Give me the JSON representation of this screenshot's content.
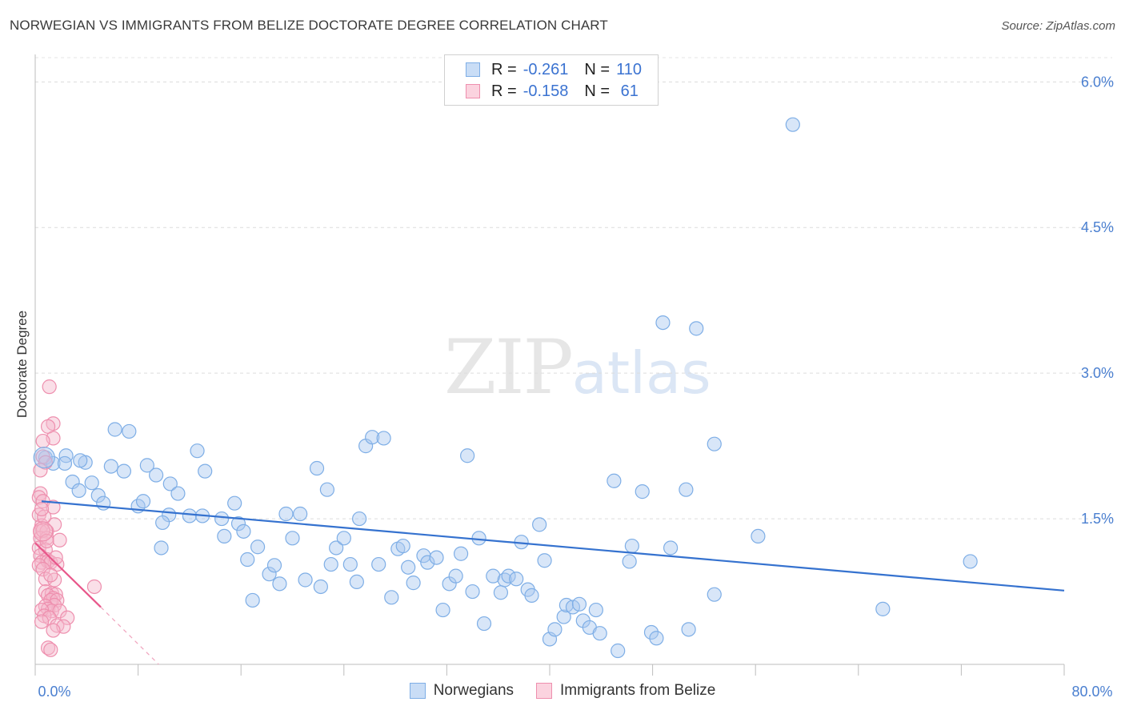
{
  "title": "NORWEGIAN VS IMMIGRANTS FROM BELIZE DOCTORATE DEGREE CORRELATION CHART",
  "source": "Source: ZipAtlas.com",
  "watermark": {
    "zip": "ZIP",
    "atlas": "atlas"
  },
  "legend": {
    "rows": [
      {
        "r_label": "R =",
        "r_value": "-0.261",
        "n_label": "N =",
        "n_value": "110",
        "color": "#a9c8ef"
      },
      {
        "r_label": "R =",
        "r_value": "-0.158",
        "n_label": "N =",
        "n_value": " 61",
        "color": "#f5b8cb"
      }
    ]
  },
  "bottom_legend": [
    {
      "label": "Norwegians",
      "color": "#a9c8ef"
    },
    {
      "label": "Immigrants from Belize",
      "color": "#f5b8cb"
    }
  ],
  "chart_data": {
    "type": "scatter",
    "title": "NORWEGIAN VS IMMIGRANTS FROM BELIZE DOCTORATE DEGREE CORRELATION CHART",
    "xlabel": "",
    "ylabel": "Doctorate Degree",
    "xlim": [
      0,
      80
    ],
    "ylim": [
      0,
      6.25
    ],
    "x_tick_labels": [
      "0.0%",
      "80.0%"
    ],
    "y_ticks": [
      1.5,
      3.0,
      4.5,
      6.0
    ],
    "y_tick_labels": [
      "1.5%",
      "3.0%",
      "4.5%",
      "6.0%"
    ],
    "grid": true,
    "series": [
      {
        "name": "Norwegians",
        "color": "#a9c8ef",
        "edge": "#7eaee6",
        "trend": {
          "x": [
            0.5,
            80
          ],
          "y": [
            1.68,
            0.76
          ],
          "color": "#3572cf"
        },
        "points": [
          [
            0.8,
            2.13
          ],
          [
            1.4,
            2.07
          ],
          [
            2.4,
            2.15
          ],
          [
            2.3,
            2.07
          ],
          [
            3.9,
            2.08
          ],
          [
            2.9,
            1.88
          ],
          [
            4.4,
            1.87
          ],
          [
            3.4,
            1.79
          ],
          [
            4.9,
            1.74
          ],
          [
            5.3,
            1.66
          ],
          [
            6.2,
            2.42
          ],
          [
            7.3,
            2.4
          ],
          [
            5.9,
            2.04
          ],
          [
            6.9,
            1.99
          ],
          [
            8.7,
            2.05
          ],
          [
            9.4,
            1.95
          ],
          [
            8.0,
            1.63
          ],
          [
            8.4,
            1.68
          ],
          [
            10.5,
            1.86
          ],
          [
            11.1,
            1.76
          ],
          [
            10.4,
            1.54
          ],
          [
            9.9,
            1.46
          ],
          [
            9.8,
            1.2
          ],
          [
            12.0,
            1.53
          ],
          [
            12.6,
            2.2
          ],
          [
            13.2,
            1.99
          ],
          [
            13.0,
            1.53
          ],
          [
            14.5,
            1.5
          ],
          [
            14.7,
            1.32
          ],
          [
            15.5,
            1.66
          ],
          [
            15.8,
            1.45
          ],
          [
            16.2,
            1.37
          ],
          [
            16.5,
            1.08
          ],
          [
            17.3,
            1.21
          ],
          [
            18.2,
            0.93
          ],
          [
            18.6,
            1.02
          ],
          [
            19.0,
            0.83
          ],
          [
            19.5,
            1.55
          ],
          [
            20.0,
            1.3
          ],
          [
            20.6,
            1.55
          ],
          [
            21.0,
            0.87
          ],
          [
            21.9,
            2.02
          ],
          [
            22.2,
            0.8
          ],
          [
            22.7,
            1.8
          ],
          [
            23.0,
            1.03
          ],
          [
            23.4,
            1.2
          ],
          [
            24.0,
            1.3
          ],
          [
            24.5,
            1.03
          ],
          [
            25.0,
            0.85
          ],
          [
            25.2,
            1.5
          ],
          [
            25.7,
            2.25
          ],
          [
            26.2,
            2.34
          ],
          [
            26.7,
            1.03
          ],
          [
            27.1,
            2.33
          ],
          [
            27.7,
            0.69
          ],
          [
            28.2,
            1.19
          ],
          [
            28.6,
            1.22
          ],
          [
            29.0,
            1.0
          ],
          [
            29.4,
            0.84
          ],
          [
            30.2,
            1.12
          ],
          [
            30.5,
            1.05
          ],
          [
            31.2,
            1.1
          ],
          [
            31.7,
            0.56
          ],
          [
            32.2,
            0.83
          ],
          [
            32.7,
            0.91
          ],
          [
            33.1,
            1.14
          ],
          [
            33.6,
            2.15
          ],
          [
            34.0,
            0.75
          ],
          [
            34.5,
            1.3
          ],
          [
            34.9,
            0.42
          ],
          [
            35.6,
            0.91
          ],
          [
            36.2,
            0.74
          ],
          [
            36.5,
            0.87
          ],
          [
            36.8,
            0.91
          ],
          [
            37.4,
            0.88
          ],
          [
            37.8,
            1.26
          ],
          [
            38.3,
            0.77
          ],
          [
            38.6,
            0.71
          ],
          [
            39.2,
            1.44
          ],
          [
            39.6,
            1.07
          ],
          [
            40.0,
            0.26
          ],
          [
            40.4,
            0.36
          ],
          [
            41.1,
            0.49
          ],
          [
            41.3,
            0.61
          ],
          [
            41.8,
            0.59
          ],
          [
            42.3,
            0.62
          ],
          [
            42.6,
            0.45
          ],
          [
            43.1,
            0.38
          ],
          [
            43.6,
            0.56
          ],
          [
            43.9,
            0.32
          ],
          [
            45.0,
            1.89
          ],
          [
            45.3,
            0.14
          ],
          [
            46.2,
            1.06
          ],
          [
            46.4,
            1.22
          ],
          [
            47.2,
            1.78
          ],
          [
            47.9,
            0.33
          ],
          [
            48.3,
            0.27
          ],
          [
            48.8,
            3.52
          ],
          [
            49.4,
            1.2
          ],
          [
            50.6,
            1.8
          ],
          [
            50.8,
            0.36
          ],
          [
            51.4,
            3.46
          ],
          [
            52.8,
            0.72
          ],
          [
            52.8,
            2.27
          ],
          [
            56.2,
            1.32
          ],
          [
            58.9,
            5.56
          ],
          [
            65.9,
            0.57
          ],
          [
            72.7,
            1.06
          ],
          [
            3.5,
            2.1
          ],
          [
            16.9,
            0.66
          ]
        ]
      },
      {
        "name": "Immigrants from Belize",
        "color": "#f5b8cb",
        "edge": "#ee8fae",
        "trend": {
          "x": [
            0.0,
            5.1
          ],
          "y": [
            1.25,
            0.59
          ],
          "color": "#e8568a",
          "dashed_to": [
            9.6,
            0.0
          ]
        },
        "points": [
          [
            1.1,
            2.86
          ],
          [
            1.4,
            2.48
          ],
          [
            1.0,
            2.45
          ],
          [
            1.4,
            2.33
          ],
          [
            0.6,
            2.3
          ],
          [
            0.6,
            2.14
          ],
          [
            0.8,
            2.08
          ],
          [
            0.4,
            2.0
          ],
          [
            0.4,
            1.76
          ],
          [
            0.3,
            1.72
          ],
          [
            0.6,
            1.68
          ],
          [
            1.4,
            1.62
          ],
          [
            0.3,
            1.54
          ],
          [
            0.5,
            1.43
          ],
          [
            1.5,
            1.44
          ],
          [
            0.4,
            1.37
          ],
          [
            0.9,
            1.37
          ],
          [
            0.4,
            1.3
          ],
          [
            0.9,
            1.3
          ],
          [
            1.9,
            1.28
          ],
          [
            0.3,
            1.2
          ],
          [
            0.8,
            1.18
          ],
          [
            0.4,
            1.12
          ],
          [
            0.9,
            1.08
          ],
          [
            0.5,
            1.05
          ],
          [
            1.0,
            1.06
          ],
          [
            1.2,
            1.05
          ],
          [
            0.3,
            1.02
          ],
          [
            1.7,
            1.03
          ],
          [
            0.6,
            0.98
          ],
          [
            0.8,
            0.88
          ],
          [
            1.5,
            0.87
          ],
          [
            4.6,
            0.8
          ],
          [
            0.8,
            0.75
          ],
          [
            1.3,
            0.73
          ],
          [
            1.6,
            0.72
          ],
          [
            1.0,
            0.71
          ],
          [
            1.4,
            0.68
          ],
          [
            1.2,
            0.66
          ],
          [
            1.7,
            0.66
          ],
          [
            1.5,
            0.61
          ],
          [
            0.8,
            0.6
          ],
          [
            1.0,
            0.57
          ],
          [
            1.3,
            0.55
          ],
          [
            0.5,
            0.56
          ],
          [
            1.9,
            0.55
          ],
          [
            0.7,
            0.5
          ],
          [
            1.1,
            0.48
          ],
          [
            2.5,
            0.48
          ],
          [
            0.5,
            0.44
          ],
          [
            1.7,
            0.4
          ],
          [
            2.2,
            0.39
          ],
          [
            1.4,
            0.35
          ],
          [
            1.0,
            0.17
          ],
          [
            1.2,
            0.15
          ],
          [
            0.6,
            1.38
          ],
          [
            0.9,
            1.27
          ],
          [
            0.7,
            1.52
          ],
          [
            1.2,
            0.92
          ],
          [
            1.6,
            1.1
          ],
          [
            0.5,
            1.6
          ]
        ]
      }
    ]
  }
}
